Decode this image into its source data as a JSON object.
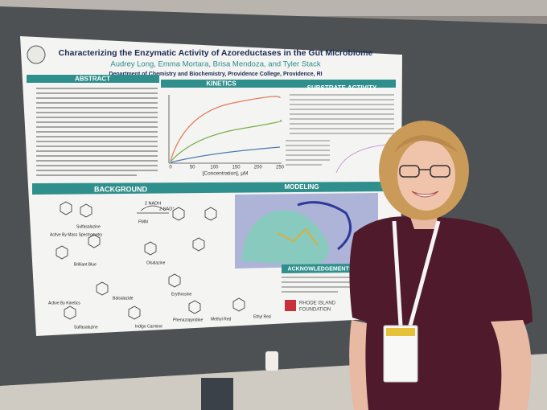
{
  "poster": {
    "title": "Characterizing the Enzymatic Activity of Azoreductases in the Gut Microbiome",
    "authors": "Audrey Long, Emma Mortara, Brisa Mendoza, and Tyler Stack",
    "affiliation": "Department of Chemistry and Biochemistry, Providence College, Providence, RI",
    "sections": {
      "abstract": "ABSTRACT",
      "kinetics": "KINETICS",
      "substrate_activity": "SUBSTRATE ACTIVITY",
      "background": "BACKGROUND",
      "modeling": "MODELING",
      "acknowledgements": "ACKNOWLEDGEMENTS"
    },
    "kinetics_plot": {
      "x_label": "[Concentration], µM",
      "x_ticks": [
        "0",
        "50",
        "100",
        "150",
        "200",
        "250"
      ]
    },
    "background": {
      "cofactor_in": "2 NADH",
      "cofactor_out": "2 NAD⁺",
      "enzyme": "FMN",
      "labels": [
        "Sulfasalazine",
        "Active By Mass Spectrometry",
        "Brilliant Blue",
        "Olsalazine",
        "Balsalazide",
        "Erythrosine",
        "Active By Kinetics",
        "Sulfasalazine",
        "Indigo Carmine",
        "Phenazopyridine",
        "Methyl Red",
        "Ethyl Red"
      ]
    },
    "sponsor": [
      "RHODE ISLAND",
      "FOUNDATION"
    ]
  }
}
